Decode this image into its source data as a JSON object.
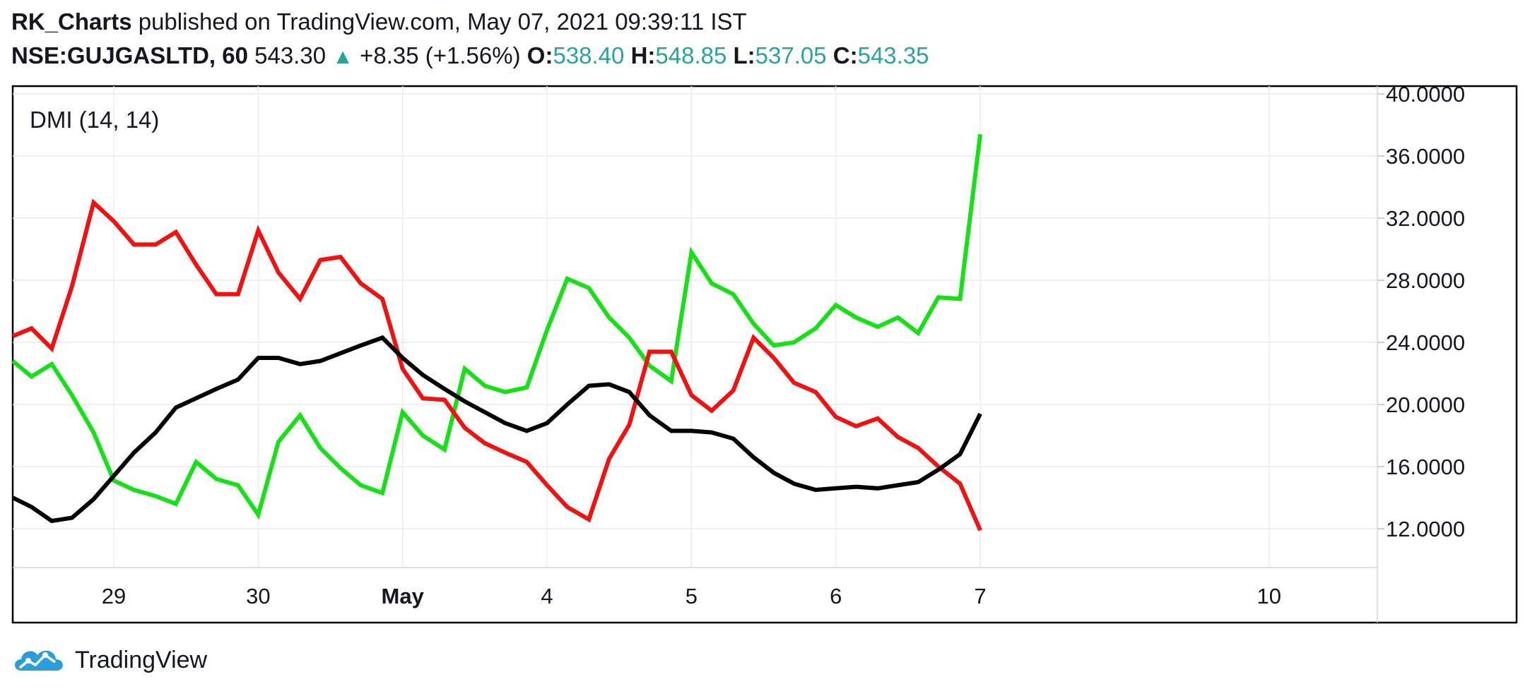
{
  "header": {
    "author": "RK_Charts",
    "published_text": "published on TradingView.com, May 07, 2021 09:39:11 IST",
    "symbol": "NSE:GUJGASLTD, 60",
    "price": "543.30",
    "change": "+8.35 (+1.56%)",
    "open_label": "O:",
    "open": "538.40",
    "high_label": "H:",
    "high": "548.85",
    "low_label": "L:",
    "low": "537.05",
    "close_label": "C:",
    "close": "543.35"
  },
  "footer": {
    "brand": "TradingView",
    "logo_icon": "tradingview-cloud-icon"
  },
  "colors": {
    "plus_di": "#16e016",
    "minus_di": "#f21010",
    "adx": "#000000",
    "teal": "#26a69a",
    "grid": "#ececec"
  },
  "chart_data": {
    "type": "line",
    "title": "DMI (14, 14)",
    "ylim": [
      9.5,
      40.5
    ],
    "xlim": [
      -0.7,
      8.75
    ],
    "yticks": [
      12,
      16,
      20,
      24,
      28,
      32,
      36,
      40
    ],
    "ytick_labels": [
      "12.0000",
      "16.0000",
      "20.0000",
      "24.0000",
      "28.0000",
      "32.0000",
      "36.0000",
      "40.0000"
    ],
    "xticks": [
      0,
      1,
      2,
      3,
      4,
      5,
      6,
      8
    ],
    "xtick_labels": [
      "29",
      "30",
      "May",
      "4",
      "5",
      "6",
      "7",
      "10"
    ],
    "grid": true,
    "series": [
      {
        "key": "plus_di",
        "x": [
          -0.7,
          -0.57,
          -0.43,
          -0.29,
          -0.14,
          0,
          0.14,
          0.29,
          0.43,
          0.57,
          0.71,
          0.86,
          1,
          1.14,
          1.29,
          1.43,
          1.57,
          1.71,
          1.86,
          2,
          2.14,
          2.29,
          2.43,
          2.57,
          2.71,
          2.86,
          3,
          3.14,
          3.29,
          3.43,
          3.57,
          3.71,
          3.86,
          4,
          4.14,
          4.29,
          4.43,
          4.57,
          4.71,
          4.86,
          5,
          5.14,
          5.29,
          5.43,
          5.57,
          5.71,
          5.86,
          6
        ],
        "y": [
          22.8,
          21.8,
          22.6,
          20.6,
          18.2,
          15.1,
          14.5,
          14.1,
          13.6,
          16.3,
          15.2,
          14.8,
          12.9,
          17.6,
          19.3,
          17.2,
          15.9,
          14.8,
          14.3,
          19.5,
          18.0,
          17.1,
          22.3,
          21.2,
          20.8,
          21.1,
          24.8,
          28.1,
          27.5,
          25.6,
          24.3,
          22.5,
          21.5,
          29.8,
          27.8,
          27.1,
          25.2,
          23.8,
          24.0,
          24.9,
          26.4,
          25.6,
          25.0,
          25.6,
          24.6,
          26.9,
          26.8,
          37.4
        ]
      },
      {
        "key": "minus_di",
        "x": [
          -0.7,
          -0.57,
          -0.43,
          -0.29,
          -0.14,
          0,
          0.14,
          0.29,
          0.43,
          0.57,
          0.71,
          0.86,
          1,
          1.14,
          1.29,
          1.43,
          1.57,
          1.71,
          1.86,
          2,
          2.14,
          2.29,
          2.43,
          2.57,
          2.71,
          2.86,
          3,
          3.14,
          3.29,
          3.43,
          3.57,
          3.71,
          3.86,
          4,
          4.14,
          4.29,
          4.43,
          4.57,
          4.71,
          4.86,
          5,
          5.14,
          5.29,
          5.43,
          5.57,
          5.71,
          5.86,
          6
        ],
        "y": [
          24.4,
          24.9,
          23.6,
          27.6,
          33.0,
          31.8,
          30.3,
          30.3,
          31.1,
          29.0,
          27.1,
          27.1,
          31.2,
          28.5,
          26.8,
          29.3,
          29.5,
          27.8,
          26.8,
          22.3,
          20.4,
          20.3,
          18.5,
          17.5,
          16.9,
          16.3,
          14.8,
          13.4,
          12.6,
          16.5,
          18.7,
          23.4,
          23.4,
          20.6,
          19.6,
          20.9,
          24.3,
          23.0,
          21.4,
          20.8,
          19.2,
          18.6,
          19.1,
          17.9,
          17.2,
          16.0,
          14.9,
          11.9
        ]
      },
      {
        "key": "adx",
        "x": [
          -0.7,
          -0.57,
          -0.43,
          -0.29,
          -0.14,
          0,
          0.14,
          0.29,
          0.43,
          0.57,
          0.71,
          0.86,
          1,
          1.14,
          1.29,
          1.43,
          1.57,
          1.71,
          1.86,
          2,
          2.14,
          2.29,
          2.43,
          2.57,
          2.71,
          2.86,
          3,
          3.14,
          3.29,
          3.43,
          3.57,
          3.71,
          3.86,
          4,
          4.14,
          4.29,
          4.43,
          4.57,
          4.71,
          4.86,
          5,
          5.14,
          5.29,
          5.43,
          5.57,
          5.71,
          5.86,
          6
        ],
        "y": [
          14.0,
          13.4,
          12.5,
          12.7,
          13.9,
          15.4,
          16.9,
          18.2,
          19.8,
          20.4,
          21.0,
          21.6,
          23.0,
          23.0,
          22.6,
          22.8,
          23.3,
          23.8,
          24.3,
          23.0,
          21.9,
          21.0,
          20.2,
          19.5,
          18.8,
          18.3,
          18.8,
          20.0,
          21.2,
          21.3,
          20.8,
          19.3,
          18.3,
          18.3,
          18.2,
          17.8,
          16.6,
          15.6,
          14.9,
          14.5,
          14.6,
          14.7,
          14.6,
          14.8,
          15.0,
          15.8,
          16.8,
          19.4
        ]
      }
    ]
  }
}
